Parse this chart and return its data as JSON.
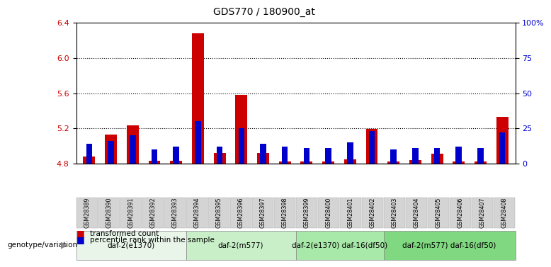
{
  "title": "GDS770 / 180900_at",
  "samples": [
    "GSM28389",
    "GSM28390",
    "GSM28391",
    "GSM28392",
    "GSM28393",
    "GSM28394",
    "GSM28395",
    "GSM28396",
    "GSM28397",
    "GSM28398",
    "GSM28399",
    "GSM28400",
    "GSM28401",
    "GSM28402",
    "GSM28403",
    "GSM28404",
    "GSM28405",
    "GSM28406",
    "GSM28407",
    "GSM28408"
  ],
  "red_values": [
    4.88,
    5.13,
    5.23,
    4.83,
    4.83,
    6.28,
    4.92,
    5.58,
    4.92,
    4.82,
    4.82,
    4.82,
    4.85,
    5.19,
    4.82,
    4.84,
    4.91,
    4.82,
    4.82,
    5.33
  ],
  "blue_values": [
    14,
    16,
    20,
    10,
    12,
    30,
    12,
    25,
    14,
    12,
    11,
    11,
    15,
    23,
    10,
    11,
    11,
    12,
    11,
    22
  ],
  "ylim_left": [
    4.8,
    6.4
  ],
  "ylim_right": [
    0,
    100
  ],
  "yticks_left": [
    4.8,
    5.2,
    5.6,
    6.0,
    6.4
  ],
  "yticks_right": [
    0,
    25,
    50,
    75,
    100
  ],
  "yticks_right_labels": [
    "0",
    "25",
    "50",
    "75",
    "100%"
  ],
  "bar_base": 4.8,
  "groups": [
    {
      "label": "daf-2(e1370)",
      "start": 0,
      "end": 5,
      "color": "#e8f5e8"
    },
    {
      "label": "daf-2(m577)",
      "start": 5,
      "end": 10,
      "color": "#c8efc8"
    },
    {
      "label": "daf-2(e1370) daf-16(df50)",
      "start": 10,
      "end": 14,
      "color": "#a8e8a8"
    },
    {
      "label": "daf-2(m577) daf-16(df50)",
      "start": 14,
      "end": 20,
      "color": "#80d880"
    }
  ],
  "red_color": "#cc0000",
  "blue_color": "#0000cc",
  "bar_width": 0.55,
  "blue_bar_width": 0.28,
  "genotype_label": "genotype/variation"
}
